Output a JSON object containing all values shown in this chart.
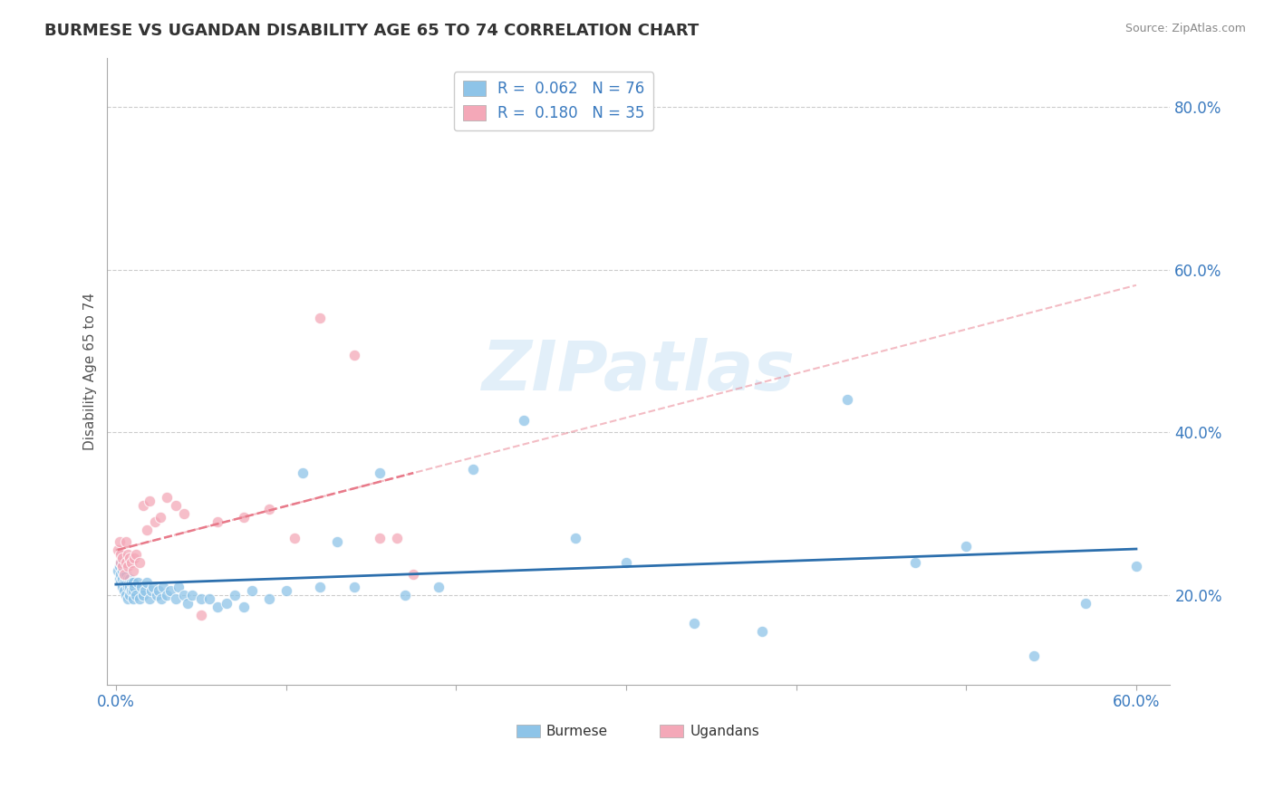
{
  "title": "BURMESE VS UGANDAN DISABILITY AGE 65 TO 74 CORRELATION CHART",
  "source": "Source: ZipAtlas.com",
  "ylabel": "Disability Age 65 to 74",
  "xlim": [
    -0.005,
    0.62
  ],
  "ylim": [
    0.09,
    0.86
  ],
  "yticks": [
    0.2,
    0.4,
    0.6,
    0.8
  ],
  "ytick_labels": [
    "20.0%",
    "40.0%",
    "60.0%",
    "80.0%"
  ],
  "xticks": [
    0.0,
    0.1,
    0.2,
    0.3,
    0.4,
    0.5,
    0.6
  ],
  "xtick_labels": [
    "0.0%",
    "",
    "",
    "",
    "",
    "",
    "60.0%"
  ],
  "burmese_color": "#8ec4e8",
  "ugandan_color": "#f4a8b8",
  "burmese_line_color": "#2c6fad",
  "ugandan_line_color": "#e87a8a",
  "burmese_R": 0.062,
  "burmese_N": 76,
  "ugandan_R": 0.18,
  "ugandan_N": 35,
  "watermark": "ZIPatlas",
  "burmese_x": [
    0.001,
    0.002,
    0.002,
    0.003,
    0.003,
    0.003,
    0.004,
    0.004,
    0.004,
    0.005,
    0.005,
    0.005,
    0.006,
    0.006,
    0.006,
    0.007,
    0.007,
    0.007,
    0.008,
    0.008,
    0.008,
    0.009,
    0.009,
    0.01,
    0.01,
    0.01,
    0.011,
    0.012,
    0.013,
    0.014,
    0.015,
    0.016,
    0.017,
    0.018,
    0.02,
    0.021,
    0.022,
    0.024,
    0.025,
    0.027,
    0.028,
    0.03,
    0.032,
    0.035,
    0.037,
    0.04,
    0.042,
    0.045,
    0.05,
    0.055,
    0.06,
    0.065,
    0.07,
    0.075,
    0.08,
    0.09,
    0.1,
    0.11,
    0.12,
    0.13,
    0.14,
    0.155,
    0.17,
    0.19,
    0.21,
    0.24,
    0.27,
    0.3,
    0.34,
    0.38,
    0.43,
    0.47,
    0.5,
    0.54,
    0.57,
    0.6
  ],
  "burmese_y": [
    0.23,
    0.22,
    0.235,
    0.215,
    0.225,
    0.24,
    0.21,
    0.22,
    0.23,
    0.215,
    0.205,
    0.225,
    0.2,
    0.215,
    0.225,
    0.195,
    0.21,
    0.22,
    0.2,
    0.21,
    0.22,
    0.205,
    0.215,
    0.195,
    0.205,
    0.215,
    0.21,
    0.2,
    0.215,
    0.195,
    0.21,
    0.2,
    0.205,
    0.215,
    0.195,
    0.205,
    0.21,
    0.2,
    0.205,
    0.195,
    0.21,
    0.2,
    0.205,
    0.195,
    0.21,
    0.2,
    0.19,
    0.2,
    0.195,
    0.195,
    0.185,
    0.19,
    0.2,
    0.185,
    0.205,
    0.195,
    0.205,
    0.35,
    0.21,
    0.265,
    0.21,
    0.35,
    0.2,
    0.21,
    0.355,
    0.415,
    0.27,
    0.24,
    0.165,
    0.155,
    0.44,
    0.24,
    0.26,
    0.125,
    0.19,
    0.235
  ],
  "ugandan_x": [
    0.001,
    0.002,
    0.003,
    0.003,
    0.004,
    0.004,
    0.005,
    0.006,
    0.006,
    0.007,
    0.007,
    0.008,
    0.009,
    0.01,
    0.011,
    0.012,
    0.014,
    0.016,
    0.018,
    0.02,
    0.023,
    0.026,
    0.03,
    0.035,
    0.04,
    0.05,
    0.06,
    0.075,
    0.09,
    0.105,
    0.12,
    0.14,
    0.155,
    0.165,
    0.175
  ],
  "ugandan_y": [
    0.255,
    0.265,
    0.24,
    0.25,
    0.235,
    0.245,
    0.225,
    0.265,
    0.24,
    0.235,
    0.25,
    0.245,
    0.24,
    0.23,
    0.245,
    0.25,
    0.24,
    0.31,
    0.28,
    0.315,
    0.29,
    0.295,
    0.32,
    0.31,
    0.3,
    0.175,
    0.29,
    0.295,
    0.305,
    0.27,
    0.54,
    0.495,
    0.27,
    0.27,
    0.225
  ]
}
